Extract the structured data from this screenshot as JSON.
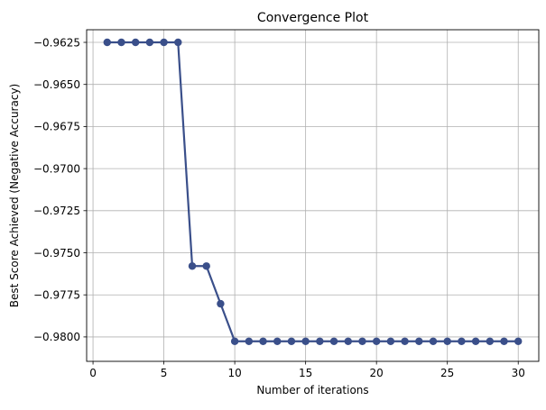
{
  "chart_data": {
    "type": "line",
    "title": "Convergence Plot",
    "xlabel": "Number of iterations",
    "ylabel": "Best Score Achieved (Negative Accuracy)",
    "xlim": [
      -0.45,
      31.45
    ],
    "ylim": [
      -0.98145,
      -0.96175
    ],
    "grid": true,
    "x_ticks": [
      0,
      5,
      10,
      15,
      20,
      25,
      30
    ],
    "y_ticks": [
      -0.9625,
      -0.965,
      -0.9675,
      -0.97,
      -0.9725,
      -0.975,
      -0.9775,
      -0.98
    ],
    "y_tick_labels": [
      "−0.9625",
      "−0.9650",
      "−0.9675",
      "−0.9700",
      "−0.9725",
      "−0.9750",
      "−0.9775",
      "−0.9800"
    ],
    "x_tick_labels": [
      "0",
      "5",
      "10",
      "15",
      "20",
      "25",
      "30"
    ],
    "series": [
      {
        "color": "#3a4f8a",
        "x": [
          1,
          2,
          3,
          4,
          5,
          6,
          7,
          8,
          9,
          10,
          11,
          12,
          13,
          14,
          15,
          16,
          17,
          18,
          19,
          20,
          21,
          22,
          23,
          24,
          25,
          26,
          27,
          28,
          29,
          30
        ],
        "y": [
          -0.9625,
          -0.9625,
          -0.9625,
          -0.9625,
          -0.9625,
          -0.9625,
          -0.97579,
          -0.97579,
          -0.97803,
          -0.98026,
          -0.98026,
          -0.98026,
          -0.98026,
          -0.98026,
          -0.98026,
          -0.98026,
          -0.98026,
          -0.98026,
          -0.98026,
          -0.98026,
          -0.98026,
          -0.98026,
          -0.98026,
          -0.98026,
          -0.98026,
          -0.98026,
          -0.98026,
          -0.98026,
          -0.98026,
          -0.98026
        ]
      }
    ]
  }
}
